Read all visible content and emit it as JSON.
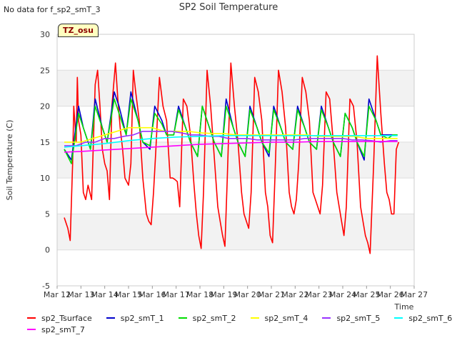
{
  "header": {
    "nodata_text": "No data for f_sp2_smT_3",
    "title": "SP2 Soil Temperature"
  },
  "badge": "TZ_osu",
  "chart_data": {
    "type": "line",
    "title": "SP2 Soil Temperature",
    "xlabel": "Time",
    "ylabel": "Soil Temperature (C)",
    "ylim": [
      -5,
      30
    ],
    "xlim": [
      12,
      27
    ],
    "y_ticks": [
      -5,
      0,
      5,
      10,
      15,
      20,
      25,
      30
    ],
    "x_ticks": [
      "Mar 12",
      "Mar 13",
      "Mar 14",
      "Mar 15",
      "Mar 16",
      "Mar 17",
      "Mar 18",
      "Mar 19",
      "Mar 20",
      "Mar 21",
      "Mar 22",
      "Mar 23",
      "Mar 24",
      "Mar 25",
      "Mar 26",
      "Mar 27"
    ],
    "grid": "horizontal bands",
    "legend_placement": "bottom",
    "series": [
      {
        "name": "sp2_Tsurface",
        "color": "#ff0000",
        "x": [
          12.3,
          12.45,
          12.55,
          12.65,
          12.7,
          12.8,
          12.85,
          12.9,
          13.0,
          13.1,
          13.2,
          13.3,
          13.45,
          13.6,
          13.7,
          13.8,
          13.9,
          14.0,
          14.1,
          14.2,
          14.3,
          14.45,
          14.55,
          14.65,
          14.75,
          14.85,
          15.0,
          15.1,
          15.2,
          15.3,
          15.45,
          15.6,
          15.75,
          15.85,
          15.95,
          16.05,
          16.15,
          16.3,
          16.45,
          16.6,
          16.75,
          16.85,
          16.95,
          17.05,
          17.15,
          17.3,
          17.45,
          17.6,
          17.75,
          17.85,
          17.95,
          18.05,
          18.15,
          18.3,
          18.45,
          18.6,
          18.75,
          18.85,
          18.95,
          19.05,
          19.15,
          19.3,
          19.45,
          19.6,
          19.75,
          19.85,
          19.95,
          20.05,
          20.15,
          20.3,
          20.45,
          20.6,
          20.75,
          20.85,
          20.95,
          21.05,
          21.15,
          21.3,
          21.45,
          21.6,
          21.75,
          21.85,
          21.95,
          22.05,
          22.15,
          22.3,
          22.45,
          22.6,
          22.75,
          22.85,
          22.95,
          23.05,
          23.15,
          23.3,
          23.45,
          23.6,
          23.75,
          23.85,
          23.95,
          24.05,
          24.15,
          24.3,
          24.45,
          24.6,
          24.75,
          24.85,
          24.95,
          25.05,
          25.15,
          25.3,
          25.45,
          25.6,
          25.75,
          25.85,
          25.95,
          26.05,
          26.15,
          26.25,
          26.35
        ],
        "values": [
          4.5,
          3,
          1.3,
          12,
          20,
          15,
          24,
          18,
          16,
          8,
          7,
          9,
          7,
          23,
          25,
          20,
          14,
          12,
          11,
          7,
          20,
          26,
          21,
          17,
          14,
          10,
          9,
          12,
          25,
          22,
          18,
          10,
          5,
          4,
          3.5,
          8,
          14,
          24,
          20,
          18,
          10,
          10,
          9.8,
          9.5,
          6,
          21,
          20,
          16,
          9,
          5,
          2,
          0.2,
          8,
          25,
          20,
          13,
          6,
          4,
          2,
          0.5,
          10,
          26,
          20,
          15,
          8,
          5,
          4,
          3,
          8,
          24,
          22,
          18,
          8,
          6,
          2,
          1,
          10,
          25,
          22,
          17,
          8,
          6,
          5,
          7,
          12,
          24,
          22,
          18,
          8,
          7,
          6,
          5,
          9,
          22,
          21,
          15,
          8,
          6,
          4,
          2,
          6,
          21,
          20,
          15,
          6,
          4,
          2,
          1,
          -0.5,
          12,
          27,
          19,
          12,
          8,
          7,
          5,
          5,
          14,
          15
        ]
      },
      {
        "name": "sp2_smT_1",
        "color": "#0000cc",
        "x": [
          12.3,
          12.6,
          12.9,
          13.1,
          13.4,
          13.6,
          13.9,
          14.1,
          14.4,
          14.6,
          14.9,
          15.1,
          15.4,
          15.6,
          15.9,
          16.1,
          16.4,
          16.6,
          16.9,
          17.1,
          17.4,
          17.6,
          17.9,
          18.1,
          18.4,
          18.6,
          18.9,
          19.1,
          19.4,
          19.6,
          19.9,
          20.1,
          20.4,
          20.6,
          20.9,
          21.1,
          21.4,
          21.6,
          21.9,
          22.1,
          22.4,
          22.6,
          22.9,
          23.1,
          23.4,
          23.6,
          23.9,
          24.1,
          24.4,
          24.6,
          24.9,
          25.1,
          25.4,
          25.6,
          25.9,
          26.1,
          26.3
        ],
        "values": [
          14,
          12.5,
          20,
          17,
          14,
          21,
          17,
          15,
          22,
          20,
          16,
          22,
          18,
          15,
          14,
          20,
          18,
          16,
          16,
          20,
          17,
          15,
          13,
          20,
          17,
          15,
          13,
          21,
          17,
          15,
          13,
          20,
          17,
          15,
          13,
          20,
          17,
          15,
          14,
          20,
          17,
          15,
          14,
          20,
          17,
          15,
          13,
          19,
          17,
          15,
          12.5,
          21,
          18,
          16,
          16,
          16,
          16
        ]
      },
      {
        "name": "sp2_smT_2",
        "color": "#00dd00",
        "x": [
          12.3,
          12.6,
          12.9,
          13.1,
          13.4,
          13.6,
          13.9,
          14.1,
          14.4,
          14.6,
          14.9,
          15.1,
          15.4,
          15.6,
          15.9,
          16.1,
          16.4,
          16.6,
          16.9,
          17.1,
          17.4,
          17.6,
          17.9,
          18.1,
          18.4,
          18.6,
          18.9,
          19.1,
          19.4,
          19.6,
          19.9,
          20.1,
          20.4,
          20.6,
          20.9,
          21.1,
          21.4,
          21.6,
          21.9,
          22.1,
          22.4,
          22.6,
          22.9,
          23.1,
          23.4,
          23.6,
          23.9,
          24.1,
          24.4,
          24.6,
          24.9,
          25.1,
          25.4,
          25.6,
          25.9,
          26.1,
          26.3
        ],
        "values": [
          14,
          12,
          19,
          17,
          14,
          20,
          17,
          15,
          21,
          19,
          16,
          21,
          18,
          15,
          14.5,
          19,
          17.5,
          16,
          16,
          19.5,
          17,
          15,
          13,
          20,
          17,
          15,
          13,
          20,
          17,
          15,
          13,
          19.5,
          17,
          15,
          13.5,
          19.5,
          17,
          15,
          14,
          19.5,
          17,
          15,
          14,
          19.5,
          17,
          15,
          13,
          19,
          17,
          15,
          13,
          20,
          18,
          16,
          15.5,
          16,
          16
        ]
      },
      {
        "name": "sp2_smT_4",
        "color": "#ffff00",
        "x": [
          12.3,
          13.0,
          13.5,
          14.0,
          14.5,
          15.0,
          15.5,
          16.0,
          16.5,
          17.0,
          17.5,
          18.0,
          18.5,
          19.0,
          19.5,
          20.0,
          20.5,
          21.0,
          21.5,
          22.0,
          22.5,
          23.0,
          23.5,
          24.0,
          24.5,
          25.0,
          25.5,
          26.0,
          26.3
        ],
        "values": [
          15,
          15,
          15.5,
          16,
          16.5,
          17,
          17,
          17,
          16.5,
          16.5,
          16.5,
          16.3,
          16.2,
          16.2,
          16,
          16,
          16,
          16,
          16,
          16,
          16,
          15.8,
          15.8,
          15.8,
          15.8,
          15.5,
          15.5,
          15.5,
          15.5
        ]
      },
      {
        "name": "sp2_smT_5",
        "color": "#9933ff",
        "x": [
          12.3,
          12.8,
          13.2,
          13.6,
          14.0,
          14.4,
          14.8,
          15.2,
          15.6,
          16.0,
          16.4,
          16.8,
          17.2,
          17.6,
          18.0,
          18.4,
          18.8,
          19.2,
          19.6,
          20.0,
          20.4,
          20.8,
          21.2,
          21.6,
          22.0,
          22.4,
          22.8,
          23.2,
          23.6,
          24.0,
          24.4,
          24.8,
          25.2,
          25.6,
          26.0,
          26.3
        ],
        "values": [
          14.5,
          14.5,
          15,
          15,
          15.5,
          15.5,
          15.8,
          16,
          16.5,
          16.5,
          16.5,
          16.5,
          16.3,
          16,
          16,
          15.8,
          15.8,
          15.5,
          15.5,
          15.5,
          15.3,
          15.3,
          15.3,
          15.3,
          15.3,
          15.5,
          15.5,
          15.5,
          15.5,
          15.5,
          15.3,
          15.3,
          15.2,
          15.0,
          15.2,
          15.2
        ]
      },
      {
        "name": "sp2_smT_6",
        "color": "#00ffff",
        "x": [
          12.3,
          13.0,
          14.0,
          15.0,
          16.0,
          17.0,
          18.0,
          19.0,
          20.0,
          21.0,
          22.0,
          23.0,
          24.0,
          25.0,
          26.0,
          26.3
        ],
        "values": [
          14.3,
          14.5,
          14.8,
          15.2,
          15.5,
          15.7,
          15.8,
          15.9,
          15.9,
          15.9,
          15.9,
          15.9,
          15.9,
          15.9,
          15.9,
          15.9
        ]
      },
      {
        "name": "sp2_smT_7",
        "color": "#ff00ff",
        "x": [
          12.3,
          13.0,
          14.0,
          15.0,
          16.0,
          17.0,
          18.0,
          19.0,
          20.0,
          21.0,
          22.0,
          23.0,
          24.0,
          25.0,
          26.0,
          26.3
        ],
        "values": [
          13.6,
          13.7,
          13.9,
          14.1,
          14.3,
          14.5,
          14.7,
          14.8,
          14.9,
          15.0,
          15.0,
          15.1,
          15.1,
          15.1,
          15.1,
          15.1
        ]
      }
    ]
  }
}
